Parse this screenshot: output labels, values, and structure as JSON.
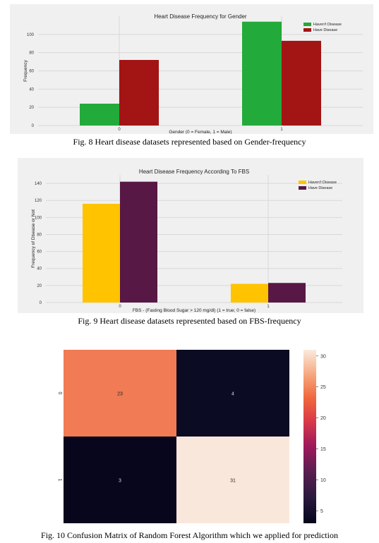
{
  "captions": {
    "fig8": "Fig. 8 Heart disease datasets represented based on Gender-frequency",
    "fig9": "Fig. 9 Heart disease datasets represented based on FBS-frequency",
    "fig10": "Fig. 10 Confusion Matrix of Random Forest Algorithm which we applied for prediction"
  },
  "chart_data": [
    {
      "type": "bar",
      "title": "Heart Disease Frequency for Gender",
      "xlabel": "Gender (0 = Female, 1 = Male)",
      "ylabel": "Frequency",
      "categories": [
        "0",
        "1"
      ],
      "series": [
        {
          "name": "Haven't Disease",
          "values": [
            24,
            114
          ],
          "color": "#22aa3a"
        },
        {
          "name": "Have Disease",
          "values": [
            72,
            93
          ],
          "color": "#a31414"
        }
      ],
      "ylim": [
        0,
        120
      ],
      "yticks": [
        0,
        20,
        40,
        60,
        80,
        100
      ],
      "legend": "top-right",
      "grid": true
    },
    {
      "type": "bar",
      "title": "Heart Disease Frequency According To FBS",
      "xlabel": "FBS - (Fasting Blood Sugar > 120 mg/dl) (1 = true; 0 = false)",
      "ylabel": "Frequency of Disease or Not",
      "categories": [
        "0",
        "1"
      ],
      "series": [
        {
          "name": "Haven't Disease",
          "values": [
            116,
            22
          ],
          "color": "#ffc300"
        },
        {
          "name": "Have Disease",
          "values": [
            142,
            23
          ],
          "color": "#581845"
        }
      ],
      "ylim": [
        0,
        150
      ],
      "yticks": [
        0,
        20,
        40,
        60,
        80,
        100,
        120,
        140
      ],
      "legend": "top-right",
      "grid": true
    },
    {
      "type": "heatmap",
      "rows": [
        "0",
        "1"
      ],
      "cols": [
        "0",
        "1"
      ],
      "values": [
        [
          23,
          4
        ],
        [
          3,
          31
        ]
      ],
      "cell_colors": [
        [
          "#f07b55",
          "#0b0b23"
        ],
        [
          "#07061c",
          "#fae7dc"
        ]
      ],
      "colorbar_ticks": [
        5,
        10,
        15,
        20,
        25,
        30
      ],
      "colorbar_range": [
        3,
        31
      ],
      "annotations": true
    }
  ]
}
